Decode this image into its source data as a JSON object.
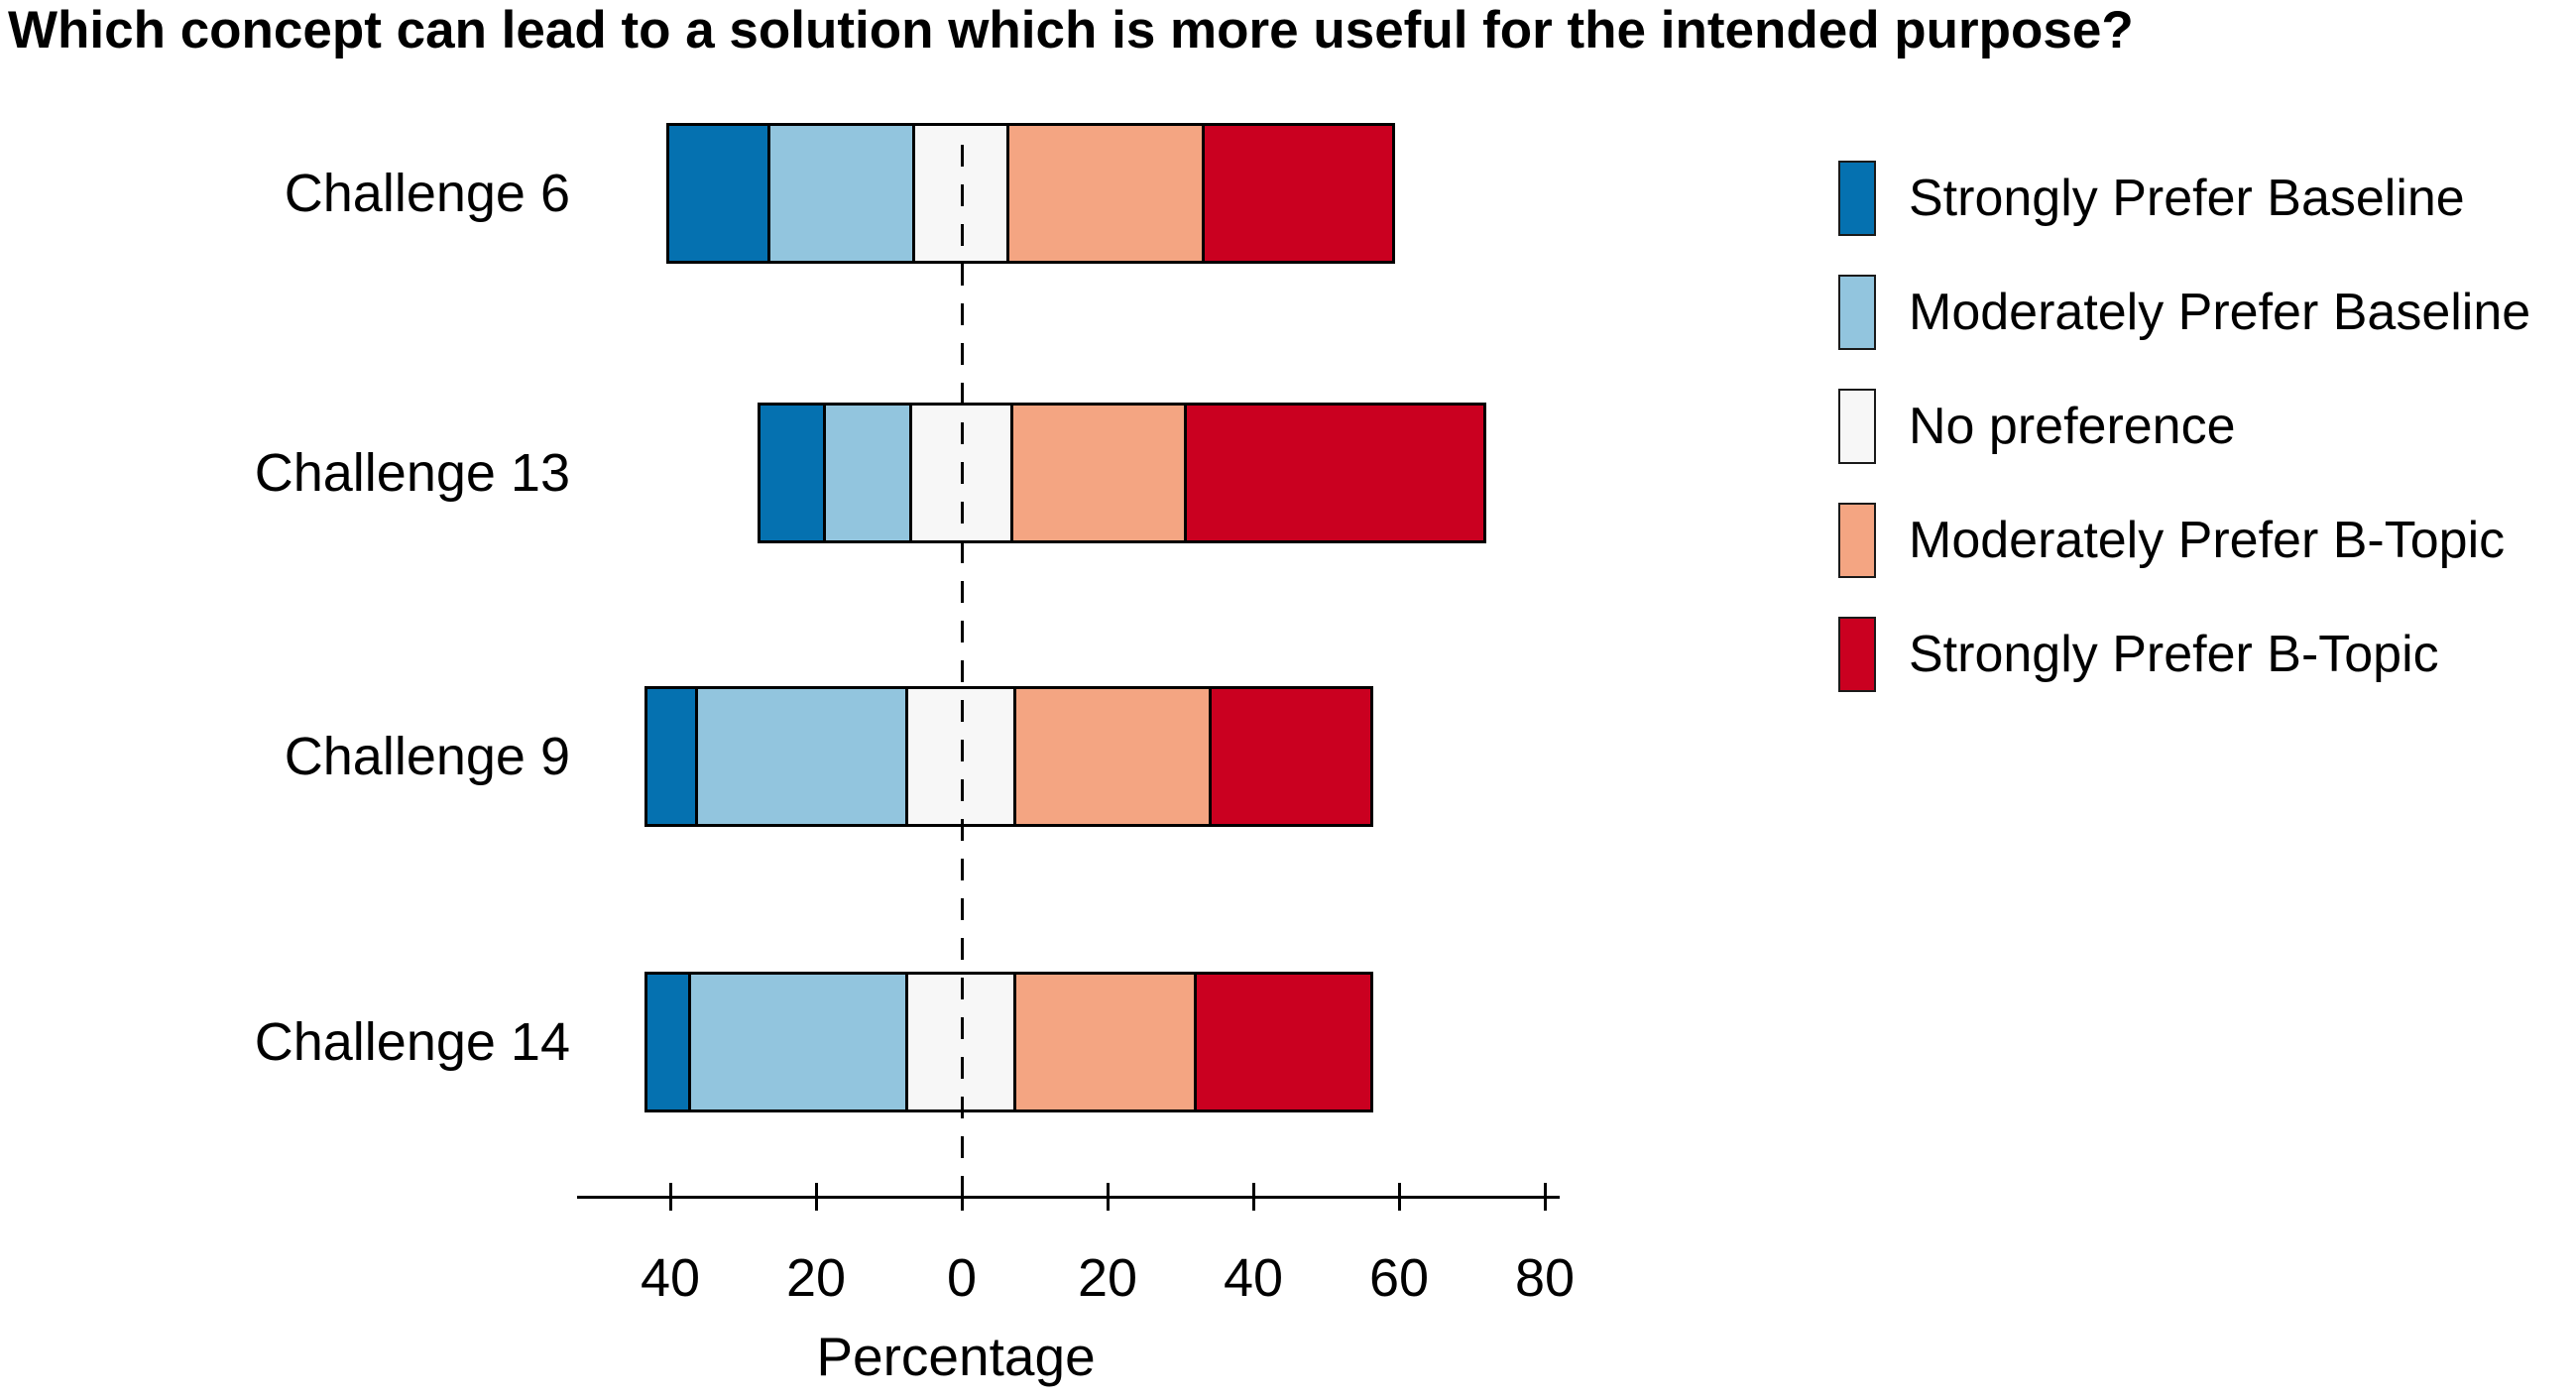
{
  "chart_data": {
    "type": "bar",
    "variant": "diverging-stacked-likert",
    "orientation": "horizontal",
    "title": "Which concept can lead to a solution which is more useful for the intended purpose?",
    "categories": [
      "Challenge 6",
      "Challenge 13",
      "Challenge 9",
      "Challenge 14"
    ],
    "series": [
      {
        "name": "Strongly Prefer Baseline",
        "color": "#0571b0",
        "values": [
          14,
          9,
          7,
          6
        ]
      },
      {
        "name": "Moderately Prefer Baseline",
        "color": "#92c5de",
        "values": [
          20,
          12,
          29,
          30
        ]
      },
      {
        "name": "No preference",
        "color": "#f7f7f7",
        "values": [
          13,
          14,
          15,
          15
        ]
      },
      {
        "name": "Moderately Prefer B-Topic",
        "color": "#f4a582",
        "values": [
          27,
          24,
          27,
          25
        ]
      },
      {
        "name": "Strongly Prefer B-Topic",
        "color": "#ca0020",
        "values": [
          26,
          41,
          22,
          24
        ]
      }
    ],
    "units": "percent",
    "neutral_category_centered_on_zero": true,
    "xlabel": "Percentage",
    "x_ticks": {
      "values": [
        -40,
        -20,
        0,
        20,
        40,
        60,
        80
      ],
      "labels": [
        "40",
        "20",
        "0",
        "20",
        "40",
        "60",
        "80"
      ]
    },
    "x_range": [
      -53,
      82
    ],
    "zero_reference_line": {
      "style": "dashed",
      "color": "#000000"
    },
    "grid": false,
    "legend_position": "right",
    "bar_border_color": "#000000",
    "background_color": "#ffffff"
  }
}
